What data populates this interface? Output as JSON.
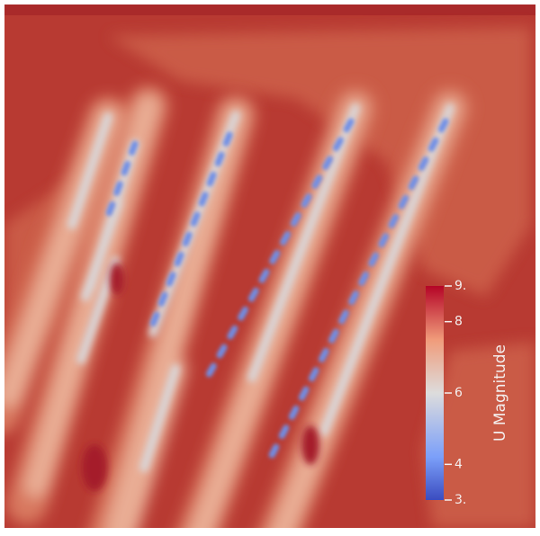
{
  "chart_data": {
    "type": "contour",
    "colorbar": {
      "title": "U Magnitude",
      "lim": [
        3,
        9
      ],
      "ticks": [
        {
          "value": 9,
          "label": "9."
        },
        8,
        6,
        4,
        {
          "value": 3,
          "label": "3."
        }
      ]
    }
  }
}
